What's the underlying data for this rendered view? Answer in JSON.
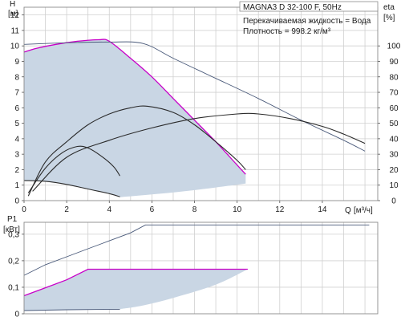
{
  "info": {
    "title": "MAGNA3 D 32-100 F, 50Hz",
    "liquid": "Перекачиваемая жидкость = Вода",
    "density": "Плотность = 998.2 кг/м³"
  },
  "colors": {
    "area": "#c9d6e4",
    "magenta": "#c800c8",
    "dark": "#2a2a2a",
    "thin": "#4a5a7a",
    "grid": "#d0d0d0"
  },
  "chart_data": [
    {
      "type": "line",
      "name": "head-curve",
      "ylabel": "H",
      "yunit": "[м]",
      "xlabel": "Q",
      "xunit": "[м³/ч]",
      "y2label": "eta",
      "y2unit": "[%]",
      "xlim": [
        0,
        16.6
      ],
      "ylim": [
        0,
        12.5
      ],
      "y2lim": [
        0,
        125
      ],
      "x_ticks": [
        0,
        2,
        4,
        6,
        8,
        10,
        12,
        14
      ],
      "y_ticks": [
        0,
        1,
        2,
        3,
        4,
        5,
        6,
        7,
        8,
        9,
        10,
        11,
        12
      ],
      "y2_ticks": [
        0,
        10,
        20,
        30,
        40,
        50,
        60,
        70,
        80,
        90,
        100
      ],
      "grid": true,
      "operating_area": {
        "upper": [
          [
            0,
            9.6
          ],
          [
            0.6,
            9.85
          ],
          [
            1.5,
            10.1
          ],
          [
            2.5,
            10.3
          ],
          [
            3.5,
            10.4
          ],
          [
            4.0,
            10.3
          ],
          [
            5.0,
            9.2
          ],
          [
            6.0,
            8.0
          ],
          [
            7.0,
            6.6
          ],
          [
            8.0,
            5.2
          ],
          [
            9.0,
            3.8
          ],
          [
            10.0,
            2.3
          ],
          [
            10.4,
            1.7
          ]
        ],
        "lower": [
          [
            10.4,
            1.1
          ],
          [
            9.0,
            0.85
          ],
          [
            7.5,
            0.6
          ],
          [
            6.0,
            0.4
          ],
          [
            4.5,
            0.22
          ]
        ]
      },
      "series": [
        {
          "role": "magenta-max-head",
          "values": [
            [
              0,
              9.6
            ],
            [
              0.6,
              9.85
            ],
            [
              1.5,
              10.1
            ],
            [
              2.5,
              10.3
            ],
            [
              3.5,
              10.4
            ],
            [
              4.0,
              10.3
            ],
            [
              5.0,
              9.2
            ],
            [
              6.0,
              8.0
            ],
            [
              7.0,
              6.6
            ],
            [
              8.0,
              5.2
            ],
            [
              9.0,
              3.8
            ],
            [
              10.0,
              2.3
            ],
            [
              10.4,
              1.7
            ]
          ]
        },
        {
          "role": "max-speed-head",
          "values": [
            [
              0,
              10.1
            ],
            [
              2.0,
              10.2
            ],
            [
              4.0,
              10.25
            ],
            [
              5.6,
              10.15
            ],
            [
              7.0,
              9.2
            ],
            [
              9.0,
              7.9
            ],
            [
              11.0,
              6.6
            ],
            [
              13.0,
              5.2
            ],
            [
              15.0,
              3.9
            ],
            [
              16.0,
              3.2
            ]
          ]
        },
        {
          "role": "min-head",
          "values": [
            [
              0,
              1.3
            ],
            [
              1.0,
              1.25
            ],
            [
              2.0,
              1.05
            ],
            [
              3.0,
              0.75
            ],
            [
              4.0,
              0.45
            ],
            [
              4.5,
              0.25
            ]
          ]
        },
        {
          "role": "efficiency-1",
          "values": [
            [
              0.2,
              0.3
            ],
            [
              1.0,
              2.5
            ],
            [
              2.0,
              3.8
            ],
            [
              3.0,
              4.9
            ],
            [
              4.0,
              5.6
            ],
            [
              5.0,
              6.0
            ],
            [
              5.8,
              6.1
            ],
            [
              7.0,
              5.7
            ],
            [
              8.0,
              4.9
            ],
            [
              9.0,
              3.8
            ],
            [
              10.0,
              2.6
            ],
            [
              10.4,
              2.0
            ]
          ]
        },
        {
          "role": "efficiency-2",
          "values": [
            [
              0.2,
              0.5
            ],
            [
              1.0,
              2.1
            ],
            [
              1.8,
              3.1
            ],
            [
              2.5,
              3.5
            ],
            [
              3.0,
              3.4
            ],
            [
              3.6,
              2.9
            ],
            [
              4.2,
              2.2
            ],
            [
              4.5,
              1.6
            ]
          ]
        },
        {
          "role": "efficiency-3",
          "values": [
            [
              0.4,
              0.6
            ],
            [
              2.0,
              2.8
            ],
            [
              4.0,
              3.9
            ],
            [
              6.0,
              4.7
            ],
            [
              8.0,
              5.3
            ],
            [
              10.0,
              5.6
            ],
            [
              11.0,
              5.6
            ],
            [
              12.5,
              5.3
            ],
            [
              14.0,
              4.8
            ],
            [
              15.0,
              4.3
            ],
            [
              16.0,
              3.7
            ]
          ]
        }
      ]
    },
    {
      "type": "line",
      "name": "power-curve",
      "ylabel": "P1",
      "yunit": "[кВт]",
      "xlim": [
        0,
        16.6
      ],
      "ylim": [
        0,
        0.345
      ],
      "y_ticks": [
        0,
        0.1,
        0.2,
        0.3
      ],
      "y_tick_labels": [
        "0",
        "0,1",
        "0,2",
        "0,3"
      ],
      "grid": true,
      "operating_area": {
        "upper": [
          [
            0,
            0.068
          ],
          [
            1.0,
            0.098
          ],
          [
            2.0,
            0.128
          ],
          [
            3.0,
            0.168
          ],
          [
            10.5,
            0.168
          ]
        ],
        "lower": [
          [
            10.5,
            0.168
          ],
          [
            9.0,
            0.11
          ],
          [
            7.0,
            0.06
          ],
          [
            5.5,
            0.03
          ],
          [
            4.5,
            0.018
          ]
        ]
      },
      "series": [
        {
          "role": "max-power",
          "values": [
            [
              0,
              0.145
            ],
            [
              1.0,
              0.185
            ],
            [
              2.0,
              0.215
            ],
            [
              3.0,
              0.245
            ],
            [
              4.0,
              0.275
            ],
            [
              5.0,
              0.305
            ],
            [
              5.7,
              0.335
            ],
            [
              16.2,
              0.335
            ]
          ]
        },
        {
          "role": "magenta-power",
          "values": [
            [
              0,
              0.068
            ],
            [
              1.0,
              0.098
            ],
            [
              2.0,
              0.128
            ],
            [
              3.0,
              0.168
            ],
            [
              10.5,
              0.168
            ]
          ]
        },
        {
          "role": "min-power",
          "values": [
            [
              0,
              0.012
            ],
            [
              2.0,
              0.015
            ],
            [
              4.5,
              0.017
            ]
          ]
        }
      ]
    }
  ]
}
